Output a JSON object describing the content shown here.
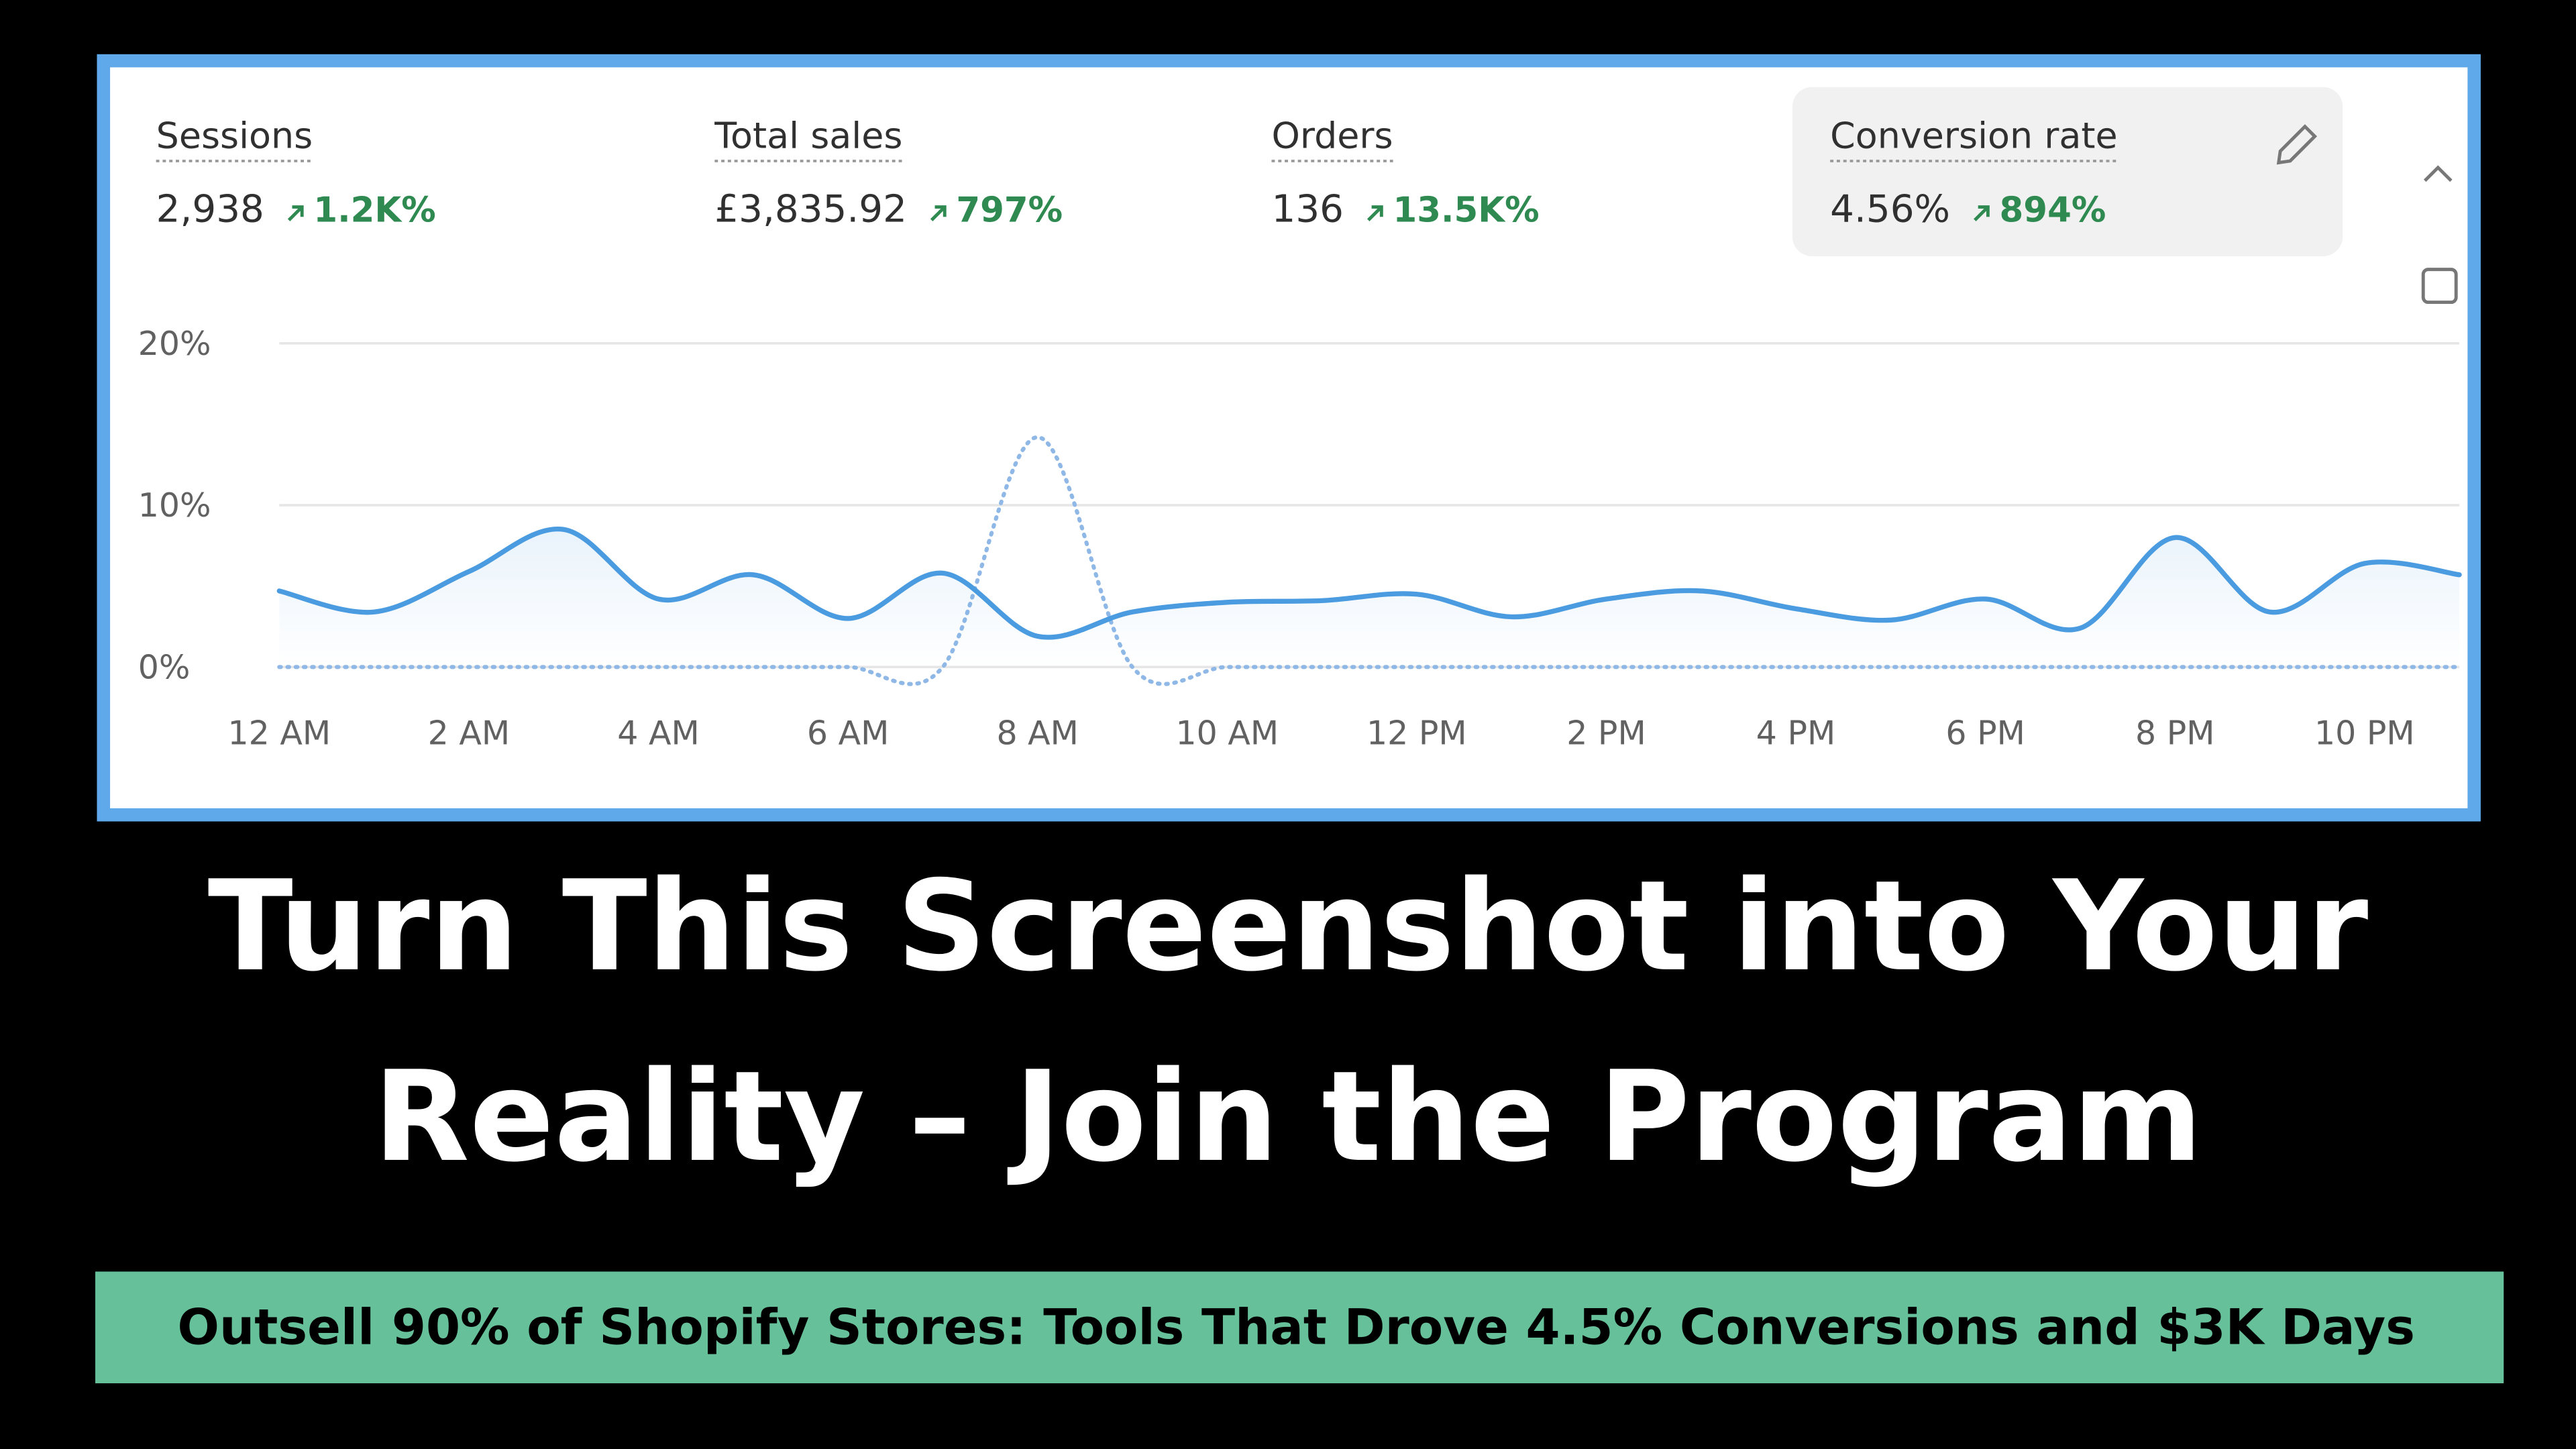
{
  "metrics": [
    {
      "title": "Sessions",
      "value": "2,938",
      "change": "1.2K%"
    },
    {
      "title": "Total sales",
      "value": "£3,835.92",
      "change": "797%"
    },
    {
      "title": "Orders",
      "value": "136",
      "change": "13.5K%"
    },
    {
      "title": "Conversion rate",
      "value": "4.56%",
      "change": "894%"
    }
  ],
  "chart_data": {
    "type": "line",
    "categories": [
      "12 AM",
      null,
      "2 AM",
      null,
      "4 AM",
      null,
      "6 AM",
      null,
      "8 AM",
      null,
      "10 AM",
      null,
      "12 PM",
      null,
      "2 PM",
      null,
      "4 PM",
      null,
      "6 PM",
      null,
      "8 PM",
      null,
      "10 PM",
      null
    ],
    "series": [
      {
        "color": "#4a9be0",
        "style": "solid",
        "values": [
          4.7,
          3.4,
          5.9,
          8.5,
          4.2,
          5.7,
          3.0,
          5.8,
          1.9,
          3.4,
          4.0,
          4.1,
          4.5,
          3.1,
          4.2,
          4.7,
          3.6,
          2.9,
          4.2,
          2.4,
          8.0,
          3.4,
          6.4,
          5.7
        ]
      },
      {
        "color": "#8fb8e6",
        "style": "dotted",
        "values": [
          0,
          0,
          0,
          0,
          0,
          0,
          0,
          0,
          14.2,
          0,
          0,
          0,
          0,
          0,
          0,
          0,
          0,
          0,
          0,
          0,
          0,
          0,
          0,
          0
        ]
      }
    ],
    "ylim": [
      0,
      20
    ],
    "yticks": [
      {
        "value": 0,
        "label": "0%"
      },
      {
        "value": 10,
        "label": "10%"
      },
      {
        "value": 20,
        "label": "20%"
      }
    ],
    "grid": true
  },
  "headline": [
    "Turn This Screenshot into Your",
    "Reality – Join the Program"
  ],
  "banner": "Outsell 90% of Shopify Stores: Tools That Drove 4.5% Conversions and $3K Days"
}
